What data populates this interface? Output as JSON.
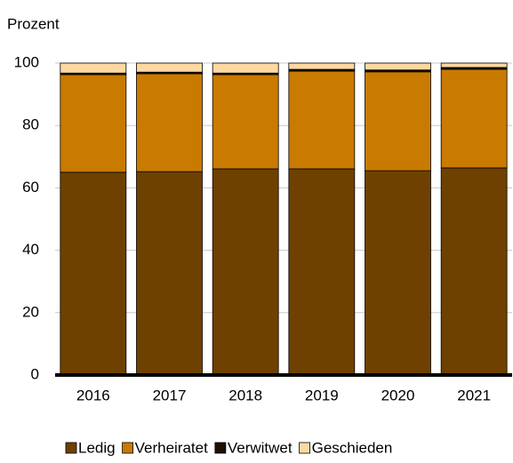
{
  "chart_data": {
    "type": "stacked-bar",
    "y_axis_label": "Prozent",
    "categories": [
      "2016",
      "2017",
      "2018",
      "2019",
      "2020",
      "2021"
    ],
    "series": [
      {
        "name": "Ledig",
        "color": "#6e4100",
        "values": [
          65.0,
          65.2,
          66.1,
          66.1,
          65.5,
          66.4
        ]
      },
      {
        "name": "Verheiratet",
        "color": "#c97a00",
        "values": [
          31.3,
          31.4,
          30.2,
          31.3,
          31.7,
          31.6
        ]
      },
      {
        "name": "Verwitwet",
        "color": "#1e1000",
        "values": [
          0.5,
          0.5,
          0.5,
          0.6,
          0.6,
          0.6
        ]
      },
      {
        "name": "Geschieden",
        "color": "#fdd9a1",
        "values": [
          3.2,
          2.9,
          3.2,
          2.0,
          2.2,
          1.4
        ]
      }
    ],
    "ylim": [
      0,
      100
    ],
    "yticks": [
      0,
      20,
      40,
      60,
      80,
      100
    ],
    "grid": true
  }
}
